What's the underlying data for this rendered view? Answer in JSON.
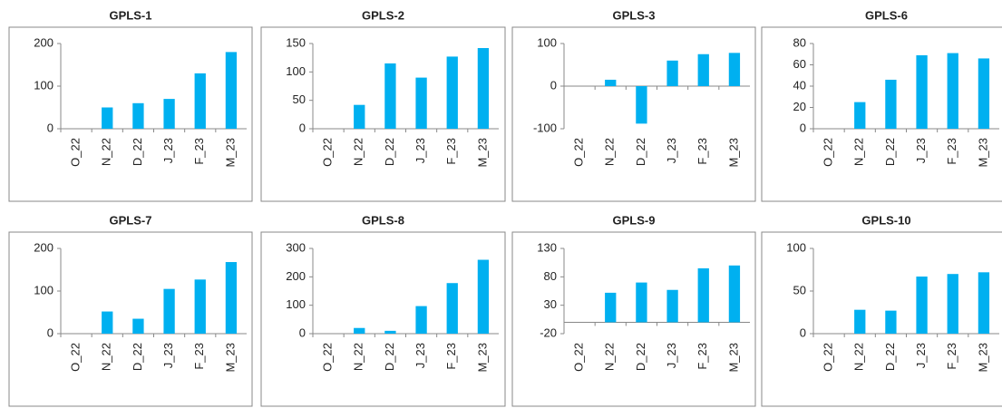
{
  "chart_data": [
    {
      "type": "bar",
      "title": "GPLS-1",
      "categories": [
        "O_22",
        "N_22",
        "D_22",
        "J_23",
        "F_23",
        "M_23"
      ],
      "values": [
        0,
        50,
        60,
        70,
        130,
        180
      ],
      "color": "#00b0f0",
      "ylim": [
        0,
        200
      ],
      "yticks": [
        0,
        100,
        200
      ]
    },
    {
      "type": "bar",
      "title": "GPLS-2",
      "categories": [
        "O_22",
        "N_22",
        "D_22",
        "J_23",
        "F_23",
        "M_23"
      ],
      "values": [
        0,
        42,
        115,
        90,
        127,
        142
      ],
      "color": "#00b0f0",
      "ylim": [
        0,
        150
      ],
      "yticks": [
        0,
        50,
        100,
        150
      ]
    },
    {
      "type": "bar",
      "title": "GPLS-3",
      "categories": [
        "O_22",
        "N_22",
        "D_22",
        "J_23",
        "F_23",
        "M_23"
      ],
      "values": [
        0,
        15,
        -88,
        60,
        75,
        78
      ],
      "color": "#00b0f0",
      "ylim": [
        -100,
        100
      ],
      "yticks": [
        -100,
        0,
        100
      ]
    },
    {
      "type": "bar",
      "title": "GPLS-6",
      "categories": [
        "O_22",
        "N_22",
        "D_22",
        "J_23",
        "F_23",
        "M_23"
      ],
      "values": [
        0,
        25,
        46,
        69,
        71,
        66
      ],
      "color": "#00b0f0",
      "ylim": [
        0,
        80
      ],
      "yticks": [
        0,
        20,
        40,
        60,
        80
      ]
    },
    {
      "type": "bar",
      "title": "GPLS-7",
      "categories": [
        "O_22",
        "N_22",
        "D_22",
        "J_23",
        "F_23",
        "M_23"
      ],
      "values": [
        0,
        52,
        35,
        105,
        127,
        168
      ],
      "color": "#00b0f0",
      "ylim": [
        0,
        200
      ],
      "yticks": [
        0,
        100,
        200
      ]
    },
    {
      "type": "bar",
      "title": "GPLS-8",
      "categories": [
        "O_22",
        "N_22",
        "D_22",
        "J_23",
        "F_23",
        "M_23"
      ],
      "values": [
        0,
        20,
        10,
        97,
        178,
        260
      ],
      "color": "#00b0f0",
      "ylim": [
        0,
        300
      ],
      "yticks": [
        0,
        100,
        200,
        300
      ]
    },
    {
      "type": "bar",
      "title": "GPLS-9",
      "categories": [
        "O_22",
        "N_22",
        "D_22",
        "J_23",
        "F_23",
        "M_23"
      ],
      "values": [
        0,
        52,
        70,
        57,
        95,
        100
      ],
      "color": "#00b0f0",
      "ylim": [
        -20,
        130
      ],
      "yticks": [
        -20,
        30,
        80,
        130
      ]
    },
    {
      "type": "bar",
      "title": "GPLS-10",
      "categories": [
        "O_22",
        "N_22",
        "D_22",
        "J_23",
        "F_23",
        "M_23"
      ],
      "values": [
        0,
        28,
        27,
        67,
        70,
        72
      ],
      "color": "#00b0f0",
      "ylim": [
        0,
        100
      ],
      "yticks": [
        0,
        50,
        100
      ]
    }
  ]
}
